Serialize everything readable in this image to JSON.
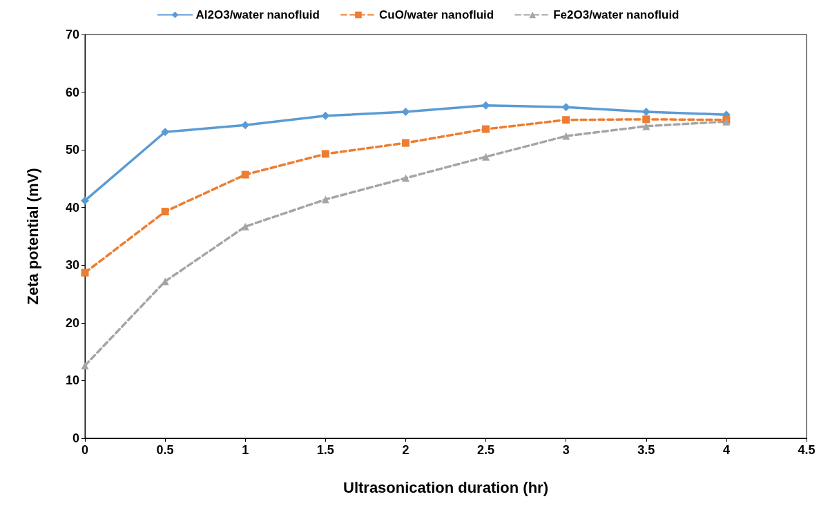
{
  "chart_data": {
    "type": "line",
    "xlabel": "Ultrasonication duration (hr)",
    "ylabel": "Zeta potential (mV)",
    "x": [
      0,
      0.5,
      1,
      1.5,
      2,
      2.5,
      3,
      3.5,
      4
    ],
    "series": [
      {
        "name": "Al2O3/water nanofluid",
        "color": "#5b9bd5",
        "marker": "diamond",
        "line_style": "solid",
        "values": [
          41.2,
          53.1,
          54.3,
          55.9,
          56.6,
          57.7,
          57.4,
          56.6,
          56.1
        ]
      },
      {
        "name": "CuO/water nanofluid",
        "color": "#ed7d31",
        "marker": "square",
        "line_style": "dashed",
        "values": [
          28.7,
          39.3,
          45.7,
          49.3,
          51.2,
          53.6,
          55.2,
          55.3,
          55.2
        ]
      },
      {
        "name": "Fe2O3/water nanofluid",
        "color": "#a5a5a5",
        "marker": "triangle",
        "line_style": "dashed",
        "values": [
          12.6,
          27.2,
          36.7,
          41.4,
          45.1,
          48.8,
          52.4,
          54.1,
          54.9
        ]
      }
    ],
    "xlim": [
      0,
      4.5
    ],
    "xticks": [
      0,
      0.5,
      1,
      1.5,
      2,
      2.5,
      3,
      3.5,
      4,
      4.5
    ],
    "ylim": [
      0,
      70
    ],
    "yticks": [
      0,
      10,
      20,
      30,
      40,
      50,
      60,
      70
    ],
    "grid": false,
    "legend": "top"
  }
}
